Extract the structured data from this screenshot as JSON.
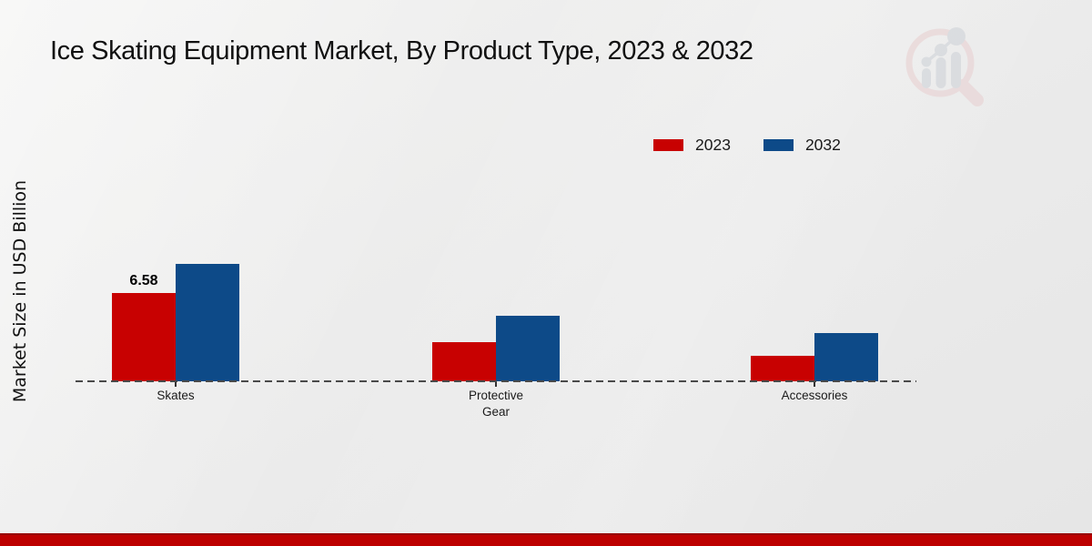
{
  "page": {
    "title": "Ice Skating Equipment Market, By Product Type, 2023 & 2032",
    "ylabel": "Market Size in USD Billion",
    "logo_icon": "market-research-future-watermark"
  },
  "legend": {
    "items": [
      {
        "label": "2023",
        "color": "#c80101"
      },
      {
        "label": "2032",
        "color": "#0d4a88"
      }
    ]
  },
  "colors": {
    "bar_2023": "#c80101",
    "bar_2032": "#0d4a88",
    "axis_dash": "#4a4a4a",
    "footer_strip": "#bd0000",
    "background": "#ebebeb",
    "text": "#1a1a1a"
  },
  "chart_data": {
    "type": "bar",
    "title": "Ice Skating Equipment Market, By Product Type, 2023 & 2032",
    "xlabel": "",
    "ylabel": "Market Size in USD Billion",
    "categories": [
      "Skates",
      "Protective Gear",
      "Accessories"
    ],
    "series": [
      {
        "name": "2023",
        "color": "#c80101",
        "values": [
          6.58,
          2.92,
          1.9
        ]
      },
      {
        "name": "2032",
        "color": "#0d4a88",
        "values": [
          8.75,
          4.88,
          3.6
        ]
      }
    ],
    "value_labels": [
      {
        "series": "2023",
        "category": "Skates",
        "text": "6.58"
      }
    ],
    "ylim": [
      0,
      9.5
    ],
    "grid": false,
    "legend_position": "top-right",
    "baseline_style": "dashed",
    "y_axis_ticks_visible": false
  }
}
